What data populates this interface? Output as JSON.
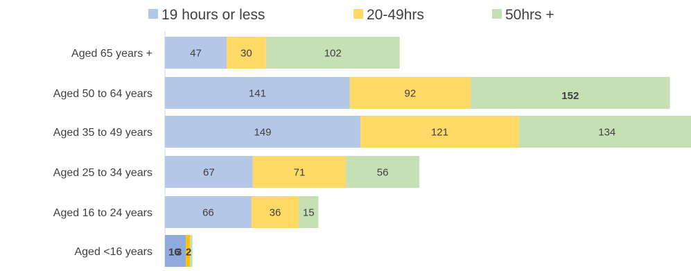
{
  "chart_data": {
    "type": "bar",
    "orientation": "horizontal",
    "stacked": true,
    "categories": [
      "Aged 65 years +",
      "Aged 50 to 64 years",
      "Aged 35 to 49 years",
      "Aged 25 to 34 years",
      "Aged 16 to 24 years",
      "Aged <16 years"
    ],
    "series": [
      {
        "name": "19 hours or less",
        "color": "#b4c7e7",
        "values": [
          47,
          141,
          149,
          67,
          66,
          16
        ]
      },
      {
        "name": "20-49hrs",
        "color": "#ffd966",
        "values": [
          30,
          92,
          121,
          71,
          36,
          3
        ]
      },
      {
        "name": "50hrs +",
        "color": "#c5e0b4",
        "values": [
          102,
          152,
          134,
          56,
          15,
          2
        ]
      }
    ],
    "emphasized_labels": [
      {
        "category": "Aged 50 to 64 years",
        "series": "50hrs +"
      },
      {
        "category": "Aged <16 years",
        "series": "19 hours or less"
      },
      {
        "category": "Aged <16 years",
        "series": "20-49hrs"
      },
      {
        "category": "Aged <16 years",
        "series": "50hrs +"
      }
    ],
    "xlim": [
      0,
      404
    ],
    "grid": false,
    "legend_position": "top"
  }
}
